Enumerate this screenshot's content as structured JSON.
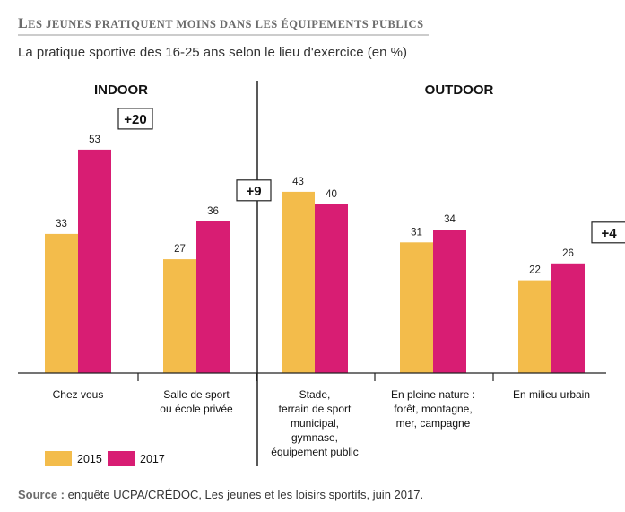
{
  "title_prefix_letter": "L",
  "title_rest": "ES JEUNES PRATIQUENT MOINS DANS LES ÉQUIPEMENTS PUBLICS",
  "subtitle": "La pratique sportive des 16-25 ans selon le lieu d'exercice (en %)",
  "groups": [
    {
      "label": "INDOOR"
    },
    {
      "label": "OUTDOOR"
    }
  ],
  "colors": {
    "series_2015": "#f3bc4b",
    "series_2017": "#d81d73",
    "axis": "#222222",
    "divider": "#222222"
  },
  "chart_data": {
    "type": "bar",
    "title": "Les jeunes pratiquent moins dans les équipements publics",
    "subtitle": "La pratique sportive des 16-25 ans selon le lieu d'exercice (en %)",
    "categories": [
      [
        "Chez vous"
      ],
      [
        "Salle de sport",
        "ou école privée"
      ],
      [
        "Stade,",
        "terrain de sport",
        "municipal,",
        "gymnase,",
        "équipement public"
      ],
      [
        "En pleine nature :",
        "forêt, montagne,",
        "mer, campagne"
      ],
      [
        "En milieu urbain"
      ]
    ],
    "series": [
      {
        "name": "2015",
        "values": [
          33,
          27,
          43,
          31,
          22
        ]
      },
      {
        "name": "2017",
        "values": [
          53,
          36,
          40,
          34,
          26
        ]
      }
    ],
    "differences": [
      "+20",
      "+9",
      "",
      "",
      "+4"
    ],
    "ylim": [
      0,
      60
    ],
    "legend_position": "bottom-left",
    "grid": false
  },
  "legend": [
    {
      "label": "2015"
    },
    {
      "label": "2017"
    }
  ],
  "source": {
    "label": "Source :",
    "text": " enquête UCPA/CRÉDOC, Les jeunes et les loisirs sportifs, juin 2017."
  }
}
